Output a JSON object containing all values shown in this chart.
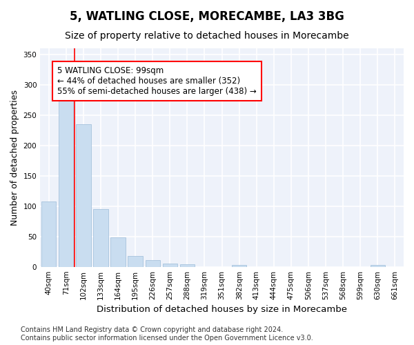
{
  "title": "5, WATLING CLOSE, MORECAMBE, LA3 3BG",
  "subtitle": "Size of property relative to detached houses in Morecambe",
  "xlabel": "Distribution of detached houses by size in Morecambe",
  "ylabel": "Number of detached properties",
  "bar_labels": [
    "40sqm",
    "71sqm",
    "102sqm",
    "133sqm",
    "164sqm",
    "195sqm",
    "226sqm",
    "257sqm",
    "288sqm",
    "319sqm",
    "351sqm",
    "382sqm",
    "413sqm",
    "444sqm",
    "475sqm",
    "506sqm",
    "537sqm",
    "568sqm",
    "599sqm",
    "630sqm",
    "661sqm"
  ],
  "bar_values": [
    108,
    280,
    235,
    95,
    49,
    18,
    11,
    5,
    4,
    0,
    0,
    3,
    0,
    0,
    0,
    0,
    0,
    0,
    0,
    3,
    0
  ],
  "bar_color": "#c9ddf0",
  "bar_edgecolor": "#9bbbd8",
  "red_line_x": 1.5,
  "annotation_text_line1": "5 WATLING CLOSE: 99sqm",
  "annotation_text_line2": "← 44% of detached houses are smaller (352)",
  "annotation_text_line3": "55% of semi-detached houses are larger (438) →",
  "ylim": [
    0,
    360
  ],
  "yticks": [
    0,
    50,
    100,
    150,
    200,
    250,
    300,
    350
  ],
  "background_color": "#eef2fa",
  "grid_color": "#ffffff",
  "footer_text": "Contains HM Land Registry data © Crown copyright and database right 2024.\nContains public sector information licensed under the Open Government Licence v3.0.",
  "title_fontsize": 12,
  "subtitle_fontsize": 10,
  "annotation_fontsize": 8.5,
  "ylabel_fontsize": 9,
  "xlabel_fontsize": 9.5,
  "tick_fontsize": 7.5,
  "footer_fontsize": 7
}
